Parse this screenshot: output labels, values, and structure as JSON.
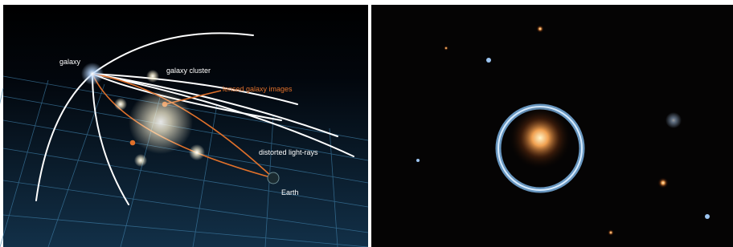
{
  "diagram": {
    "labels": {
      "galaxy": "galaxy",
      "cluster": "galaxy cluster",
      "lensed": "lensed galaxy images",
      "rays": "distorted light-rays",
      "earth": "Earth"
    }
  }
}
